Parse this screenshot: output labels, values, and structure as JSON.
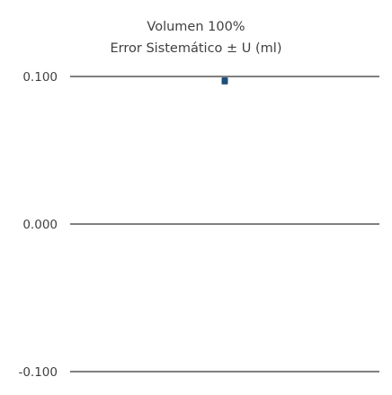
{
  "chart_data": {
    "type": "scatter",
    "title": "Volumen 100%",
    "subtitle": "Error Sistemático ± U (ml)",
    "ylim": [
      -0.1,
      0.1
    ],
    "yticks": [
      0.1,
      0.0,
      -0.1
    ],
    "ytick_labels": [
      "0.100",
      "0.000",
      "-0.100"
    ],
    "grid": true,
    "series": [
      {
        "points": [
          {
            "y": 0.097,
            "err": 0.002
          }
        ],
        "color": "#1f4e79",
        "marker": "square"
      }
    ]
  }
}
